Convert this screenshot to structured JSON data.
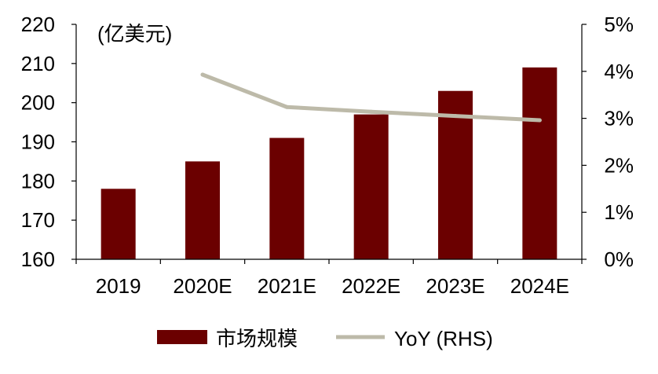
{
  "chart_data": {
    "type": "bar",
    "unit_label": "(亿美元)",
    "categories": [
      "2019",
      "2020E",
      "2021E",
      "2022E",
      "2023E",
      "2024E"
    ],
    "series": [
      {
        "name": "市场规模",
        "kind": "bar",
        "axis": "left",
        "color": "#6B0000",
        "values": [
          178,
          185,
          191,
          197,
          203,
          209
        ]
      },
      {
        "name": "YoY (RHS)",
        "kind": "line",
        "axis": "right",
        "color": "#BDBAA9",
        "values": [
          null,
          3.93,
          3.24,
          3.14,
          3.05,
          2.96
        ]
      }
    ],
    "y_left": {
      "min": 160,
      "max": 220,
      "step": 10,
      "ticks": [
        "160",
        "170",
        "180",
        "190",
        "200",
        "210",
        "220"
      ]
    },
    "y_right": {
      "min": 0,
      "max": 5,
      "step": 1,
      "ticks": [
        "0%",
        "1%",
        "2%",
        "3%",
        "4%",
        "5%"
      ]
    },
    "grid": false,
    "legend_position": "bottom"
  }
}
